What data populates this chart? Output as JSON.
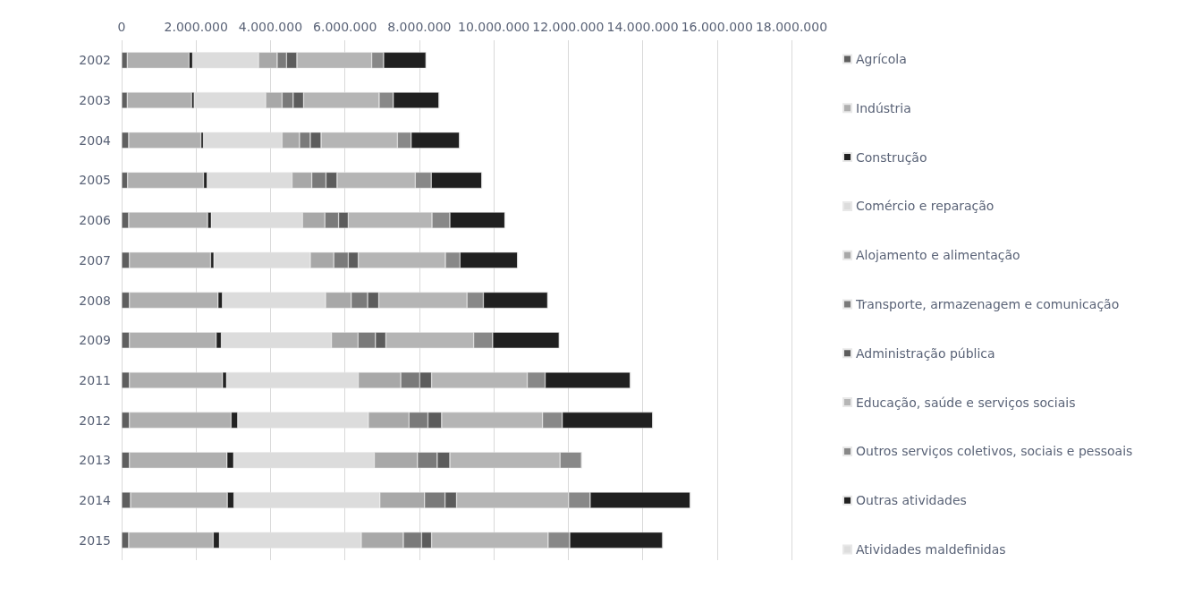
{
  "chart_data": {
    "type": "bar",
    "orientation": "horizontal",
    "stacked": true,
    "categories": [
      "2002",
      "2003",
      "2004",
      "2005",
      "2006",
      "2007",
      "2008",
      "2009",
      "2011",
      "2012",
      "2013",
      "2014",
      "2015"
    ],
    "series": [
      {
        "name": "Agrícola",
        "color": "#5f5f5f",
        "values": [
          150000,
          150000,
          190000,
          160000,
          190000,
          210000,
          210000,
          210000,
          210000,
          210000,
          210000,
          240000,
          190000
        ]
      },
      {
        "name": "Indústria",
        "color": "#afafaf",
        "values": [
          1660000,
          1730000,
          1940000,
          2040000,
          2120000,
          2180000,
          2380000,
          2330000,
          2500000,
          2730000,
          2620000,
          2600000,
          2270000
        ]
      },
      {
        "name": "Construção",
        "color": "#222222",
        "values": [
          100000,
          70000,
          70000,
          100000,
          100000,
          90000,
          120000,
          140000,
          110000,
          180000,
          180000,
          180000,
          170000
        ]
      },
      {
        "name": "Comércio e reparação",
        "color": "#dcdcdc",
        "values": [
          1770000,
          1920000,
          2110000,
          2280000,
          2450000,
          2590000,
          2770000,
          2960000,
          3540000,
          3510000,
          3780000,
          3920000,
          3810000
        ]
      },
      {
        "name": "Alojamento e alimentação",
        "color": "#a8a8a8",
        "values": [
          500000,
          440000,
          470000,
          530000,
          600000,
          630000,
          690000,
          710000,
          1140000,
          1090000,
          1160000,
          1200000,
          1130000
        ]
      },
      {
        "name": "Transporte, armazenagem e comunicação",
        "color": "#7a7a7a",
        "values": [
          250000,
          300000,
          290000,
          380000,
          370000,
          390000,
          440000,
          470000,
          510000,
          510000,
          530000,
          550000,
          490000
        ]
      },
      {
        "name": "Administração pública",
        "color": "#5c5c5c",
        "values": [
          280000,
          280000,
          290000,
          300000,
          260000,
          270000,
          300000,
          280000,
          320000,
          370000,
          340000,
          310000,
          270000
        ]
      },
      {
        "name": "Educação, saúde e serviços sociais",
        "color": "#b5b5b5",
        "values": [
          2010000,
          2030000,
          2050000,
          2100000,
          2250000,
          2340000,
          2370000,
          2360000,
          2570000,
          2710000,
          2960000,
          3010000,
          3130000
        ]
      },
      {
        "name": "Outros serviços coletivos, sociais e pessoais",
        "color": "#888888",
        "values": [
          320000,
          380000,
          370000,
          430000,
          480000,
          390000,
          440000,
          510000,
          480000,
          530000,
          580000,
          580000,
          580000
        ]
      },
      {
        "name": "Outras atividades",
        "color": "#202020",
        "values": [
          1140000,
          1230000,
          1300000,
          1360000,
          1480000,
          1550000,
          1730000,
          1790000,
          2290000,
          2430000,
          0,
          2690000,
          2500000
        ]
      },
      {
        "name": "Atividades maldefinidas",
        "color": "#dddddd",
        "values": [
          0,
          0,
          0,
          0,
          0,
          0,
          0,
          0,
          0,
          0,
          0,
          0,
          0
        ]
      }
    ],
    "xlim": [
      0,
      18000000
    ],
    "xticks": [
      0,
      {
        "value": 2000000,
        "label": "2.000.000"
      },
      {
        "value": 4000000,
        "label": "4.000.000"
      },
      {
        "value": 6000000,
        "label": "6.000.000"
      },
      {
        "value": 8000000,
        "label": "8.000.000"
      },
      {
        "value": 10000000,
        "label": "10.000.000"
      },
      {
        "value": 12000000,
        "label": "12.000.000"
      },
      {
        "value": 14000000,
        "label": "14.000.000"
      },
      {
        "value": 16000000,
        "label": "16.000.000"
      },
      {
        "value": 18000000,
        "label": "18.000.000"
      }
    ],
    "grid": "x",
    "legend": "right"
  }
}
